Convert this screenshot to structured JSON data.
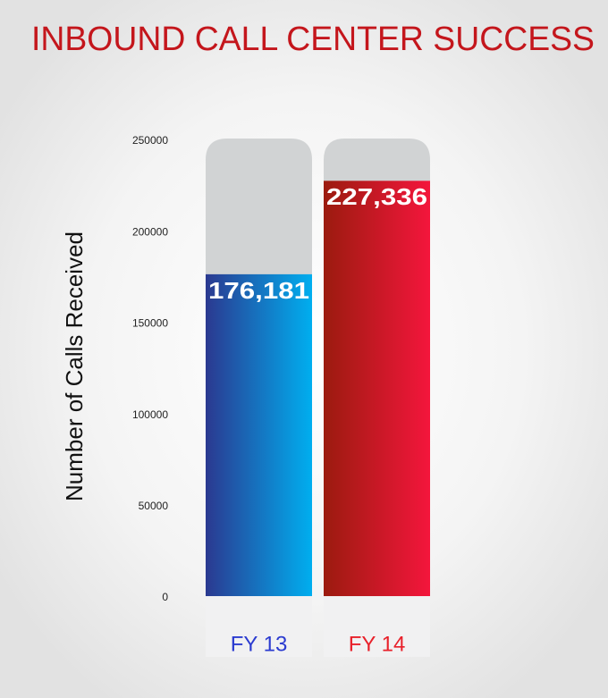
{
  "chart_data": {
    "type": "bar",
    "title": "INBOUND CALL CENTER SUCCESS",
    "ylabel": "Number of Calls Received",
    "categories": [
      "FY 13",
      "FY 14"
    ],
    "values": [
      176181,
      227336
    ],
    "value_labels": [
      "176,181",
      "227,336"
    ],
    "colors": [
      [
        "#2b3990",
        "#00aeef"
      ],
      [
        "#9b1b0f",
        "#f4163c"
      ]
    ],
    "label_colors": [
      "#2b3bd0",
      "#e8202a"
    ],
    "ylim": [
      0,
      250000
    ],
    "yticks": [
      0,
      50000,
      100000,
      150000,
      200000,
      250000
    ],
    "grid": false
  }
}
